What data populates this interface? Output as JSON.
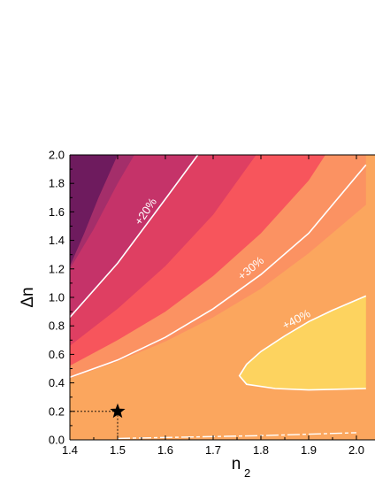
{
  "chart_data": {
    "type": "contour",
    "xlabel": "n",
    "xlabel_sub": "2",
    "ylabel": "Δn",
    "xlim": [
      1.4,
      2.02
    ],
    "ylim": [
      0.0,
      2.0
    ],
    "x_ticks": [
      1.4,
      1.5,
      1.6,
      1.7,
      1.8,
      1.9,
      2.0
    ],
    "y_ticks": [
      0.0,
      0.2,
      0.4,
      0.6,
      0.8,
      1.0,
      1.2,
      1.4,
      1.6,
      1.8,
      2.0
    ],
    "x_tick_labels": [
      "1.4",
      "1.5",
      "1.6",
      "1.7",
      "1.8",
      "1.9",
      "2.0"
    ],
    "y_tick_labels": [
      "0.0",
      "0.2",
      "0.4",
      "0.6",
      "0.8",
      "1.0",
      "1.2",
      "1.4",
      "1.6",
      "1.8",
      "2.0"
    ],
    "bands": [
      {
        "color": "#fba65e",
        "boundary": "full"
      },
      {
        "color": "#fb9262",
        "boundary": [
          [
            1.4,
            0.43
          ],
          [
            1.5,
            0.55
          ],
          [
            1.6,
            0.69
          ],
          [
            1.7,
            0.86
          ],
          [
            1.8,
            1.06
          ],
          [
            1.9,
            1.31
          ],
          [
            2.02,
            1.65
          ]
        ]
      },
      {
        "color": "#f7555c",
        "boundary": [
          [
            1.4,
            0.52
          ],
          [
            1.5,
            0.7
          ],
          [
            1.6,
            0.9
          ],
          [
            1.7,
            1.15
          ],
          [
            1.8,
            1.45
          ],
          [
            1.9,
            1.82
          ],
          [
            1.935,
            2.0
          ]
        ]
      },
      {
        "color": "#df3f62",
        "boundary": [
          [
            1.4,
            0.66
          ],
          [
            1.5,
            0.92
          ],
          [
            1.6,
            1.22
          ],
          [
            1.7,
            1.58
          ],
          [
            1.79,
            2.0
          ]
        ]
      },
      {
        "color": "#c53369",
        "boundary": [
          [
            1.4,
            0.85
          ],
          [
            1.5,
            1.24
          ],
          [
            1.6,
            1.68
          ],
          [
            1.668,
            2.0
          ]
        ]
      },
      {
        "color": "#a42e6a",
        "boundary": [
          [
            1.4,
            1.2
          ],
          [
            1.45,
            1.48
          ],
          [
            1.5,
            1.8
          ],
          [
            1.535,
            2.0
          ]
        ]
      },
      {
        "color": "#6e1b5e",
        "boundary": [
          [
            1.4,
            1.22
          ],
          [
            1.43,
            1.45
          ],
          [
            1.46,
            1.7
          ],
          [
            1.5,
            2.0
          ]
        ]
      }
    ],
    "yellow_region": {
      "color": "#fdd35f",
      "outline": [
        [
          2.02,
          1.01
        ],
        [
          1.95,
          0.91
        ],
        [
          1.9,
          0.83
        ],
        [
          1.85,
          0.73
        ],
        [
          1.8,
          0.62
        ],
        [
          1.77,
          0.53
        ],
        [
          1.755,
          0.45
        ],
        [
          1.77,
          0.39
        ],
        [
          1.83,
          0.36
        ],
        [
          1.9,
          0.35
        ],
        [
          2.02,
          0.36
        ]
      ]
    },
    "contours": [
      {
        "label": "+20%",
        "points": [
          [
            1.4,
            0.86
          ],
          [
            1.5,
            1.24
          ],
          [
            1.6,
            1.69
          ],
          [
            1.668,
            2.0
          ]
        ],
        "label_at": [
          1.56,
          1.6
        ],
        "label_angle": -56
      },
      {
        "label": "+30%",
        "points": [
          [
            1.4,
            0.44
          ],
          [
            1.5,
            0.56
          ],
          [
            1.6,
            0.72
          ],
          [
            1.7,
            0.92
          ],
          [
            1.8,
            1.16
          ],
          [
            1.9,
            1.45
          ],
          [
            2.0,
            1.85
          ],
          [
            2.02,
            1.93
          ]
        ],
        "label_at": [
          1.78,
          1.2
        ],
        "label_angle": -40
      },
      {
        "label": "+40%",
        "points": [
          [
            2.02,
            1.01
          ],
          [
            1.95,
            0.91
          ],
          [
            1.9,
            0.83
          ],
          [
            1.85,
            0.73
          ],
          [
            1.8,
            0.62
          ],
          [
            1.77,
            0.53
          ],
          [
            1.755,
            0.45
          ],
          [
            1.77,
            0.39
          ],
          [
            1.83,
            0.36
          ],
          [
            1.9,
            0.35
          ],
          [
            2.02,
            0.36
          ]
        ],
        "label_at": [
          1.875,
          0.84
        ],
        "label_angle": -28
      }
    ],
    "marker": {
      "x": 1.5,
      "y": 0.2,
      "symbol": "star"
    },
    "bottom_contour": {
      "points": [
        [
          1.5,
          0.01
        ],
        [
          1.65,
          0.02
        ],
        [
          1.8,
          0.03
        ],
        [
          1.9,
          0.04
        ],
        [
          2.0,
          0.05
        ]
      ]
    }
  }
}
